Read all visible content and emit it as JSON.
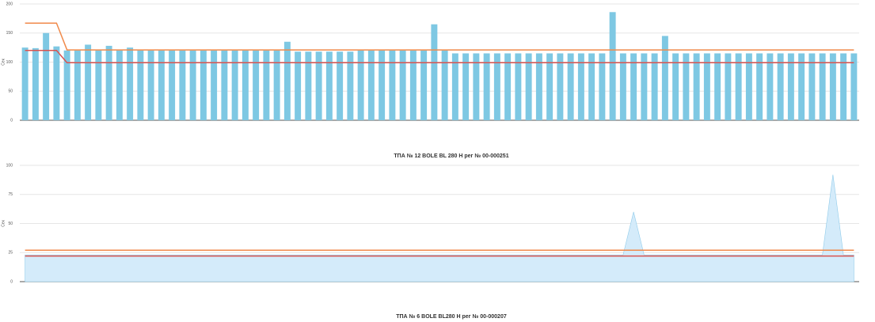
{
  "chart_data": [
    {
      "type": "bar",
      "title": "ТПА № 12 BOLE BL 280 H рег № 00-000251",
      "y_label": "Сек",
      "ylim": [
        0,
        200
      ],
      "yticks": [
        0,
        50,
        100,
        150,
        200
      ],
      "grid": true,
      "series": [
        {
          "type": "bar",
          "color": "#7ec8e3",
          "values": [
            125,
            124,
            150,
            127,
            120,
            120,
            130,
            120,
            128,
            120,
            125,
            120,
            120,
            120,
            120,
            120,
            120,
            120,
            120,
            120,
            120,
            120,
            120,
            120,
            120,
            135,
            118,
            118,
            118,
            118,
            118,
            118,
            120,
            120,
            120,
            120,
            120,
            120,
            120,
            165,
            120,
            115,
            115,
            115,
            115,
            115,
            115,
            115,
            115,
            115,
            115,
            115,
            115,
            115,
            115,
            115,
            186,
            115,
            115,
            115,
            115,
            145,
            115,
            115,
            115,
            115,
            115,
            115,
            115,
            115,
            115,
            115,
            115,
            115,
            115,
            115,
            115,
            115,
            115,
            115
          ]
        },
        {
          "type": "line",
          "color": "#f08a4b",
          "values": [
            167,
            167,
            167,
            167,
            121,
            121,
            121,
            121,
            121,
            121,
            121,
            121,
            121,
            121,
            121,
            121,
            121,
            121,
            121,
            121,
            121,
            121,
            121,
            121,
            121,
            121,
            121,
            121,
            121,
            121,
            121,
            121,
            121,
            121,
            121,
            121,
            121,
            121,
            121,
            121,
            121,
            121,
            121,
            121,
            121,
            121,
            121,
            121,
            121,
            121,
            121,
            121,
            121,
            121,
            121,
            121,
            121,
            121,
            121,
            121,
            121,
            121,
            121,
            121,
            121,
            121,
            121,
            121,
            121,
            121,
            121,
            121,
            121,
            121,
            121,
            121,
            121,
            121,
            121,
            121
          ]
        },
        {
          "type": "line",
          "color": "#d9534f",
          "values": [
            120,
            120,
            120,
            120,
            99,
            99,
            99,
            99,
            99,
            99,
            99,
            99,
            99,
            99,
            99,
            99,
            99,
            99,
            99,
            99,
            99,
            99,
            99,
            99,
            99,
            99,
            99,
            99,
            99,
            99,
            99,
            99,
            99,
            99,
            99,
            99,
            99,
            99,
            99,
            99,
            99,
            99,
            99,
            99,
            99,
            99,
            99,
            99,
            99,
            99,
            99,
            99,
            99,
            99,
            99,
            99,
            99,
            99,
            99,
            99,
            99,
            99,
            99,
            99,
            99,
            99,
            99,
            99,
            99,
            99,
            99,
            99,
            99,
            99,
            99,
            99,
            99,
            99,
            99,
            99
          ]
        }
      ]
    },
    {
      "type": "area",
      "title": "ТПА № 6 BOLE BL280 H рег № 00-000207",
      "y_label": "Сек",
      "ylim": [
        0,
        100
      ],
      "yticks": [
        0,
        25,
        50,
        75,
        100
      ],
      "grid": true,
      "series": [
        {
          "type": "area",
          "color": "#8fcbea",
          "values": [
            23,
            23,
            23,
            23,
            23,
            23,
            23,
            23,
            23,
            23,
            23,
            23,
            23,
            23,
            23,
            23,
            23,
            23,
            23,
            23,
            23,
            23,
            23,
            23,
            23,
            23,
            23,
            23,
            23,
            23,
            23,
            23,
            23,
            23,
            23,
            23,
            23,
            23,
            23,
            23,
            23,
            23,
            23,
            23,
            23,
            23,
            23,
            23,
            23,
            23,
            23,
            23,
            23,
            23,
            23,
            23,
            23,
            23,
            60,
            23,
            23,
            23,
            23,
            23,
            23,
            23,
            23,
            23,
            23,
            23,
            23,
            23,
            23,
            23,
            23,
            23,
            23,
            92,
            23,
            23
          ]
        },
        {
          "type": "line",
          "color": "#f08a4b",
          "values": [
            27,
            27,
            27,
            27,
            27,
            27,
            27,
            27,
            27,
            27,
            27,
            27,
            27,
            27,
            27,
            27,
            27,
            27,
            27,
            27,
            27,
            27,
            27,
            27,
            27,
            27,
            27,
            27,
            27,
            27,
            27,
            27,
            27,
            27,
            27,
            27,
            27,
            27,
            27,
            27,
            27,
            27,
            27,
            27,
            27,
            27,
            27,
            27,
            27,
            27,
            27,
            27,
            27,
            27,
            27,
            27,
            27,
            27,
            27,
            27,
            27,
            27,
            27,
            27,
            27,
            27,
            27,
            27,
            27,
            27,
            27,
            27,
            27,
            27,
            27,
            27,
            27,
            27,
            27,
            27
          ]
        },
        {
          "type": "line",
          "color": "#d9534f",
          "values": [
            22,
            22,
            22,
            22,
            22,
            22,
            22,
            22,
            22,
            22,
            22,
            22,
            22,
            22,
            22,
            22,
            22,
            22,
            22,
            22,
            22,
            22,
            22,
            22,
            22,
            22,
            22,
            22,
            22,
            22,
            22,
            22,
            22,
            22,
            22,
            22,
            22,
            22,
            22,
            22,
            22,
            22,
            22,
            22,
            22,
            22,
            22,
            22,
            22,
            22,
            22,
            22,
            22,
            22,
            22,
            22,
            22,
            22,
            22,
            22,
            22,
            22,
            22,
            22,
            22,
            22,
            22,
            22,
            22,
            22,
            22,
            22,
            22,
            22,
            22,
            22,
            22,
            22,
            22,
            22
          ]
        }
      ]
    }
  ]
}
